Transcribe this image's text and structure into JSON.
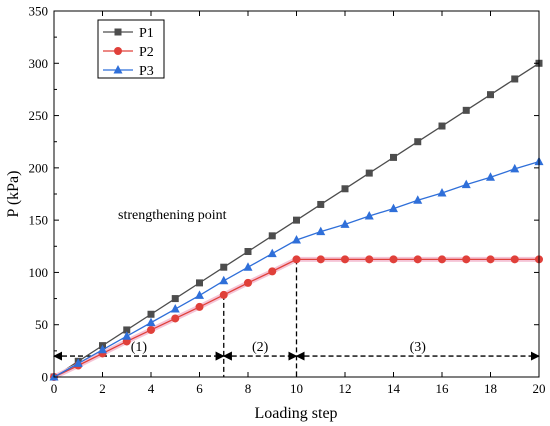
{
  "chart_data": {
    "type": "line",
    "title": "",
    "xlabel": "Loading step",
    "ylabel": "P (kPa)",
    "xlim": [
      0,
      20
    ],
    "ylim": [
      0,
      350
    ],
    "xticks": [
      0,
      2,
      4,
      6,
      8,
      10,
      12,
      14,
      16,
      18,
      20
    ],
    "yticks": [
      0,
      50,
      100,
      150,
      200,
      250,
      300,
      350
    ],
    "grid": false,
    "legend_position": "top-left",
    "x": [
      0,
      1,
      2,
      3,
      4,
      5,
      6,
      7,
      8,
      9,
      10,
      11,
      12,
      13,
      14,
      15,
      16,
      17,
      18,
      19,
      20
    ],
    "series": [
      {
        "name": "P1",
        "color": "#4d4d4d",
        "marker": "square",
        "values": [
          0,
          15,
          30,
          45,
          60,
          75,
          90,
          105,
          120,
          135,
          150,
          165,
          180,
          195,
          210,
          225,
          240,
          255,
          270,
          285,
          300
        ]
      },
      {
        "name": "P2",
        "color": "#e0403a",
        "marker": "circle",
        "values": [
          0,
          11,
          22.5,
          34,
          45,
          56,
          67,
          78.5,
          90,
          101,
          112.5,
          112.5,
          112.5,
          112.5,
          112.5,
          112.5,
          112.5,
          112.5,
          112.5,
          112.5,
          112.5
        ]
      },
      {
        "name": "P3",
        "color": "#2f6fd9",
        "marker": "triangle",
        "values": [
          0,
          13,
          26,
          39,
          52,
          65,
          78,
          92,
          105,
          118,
          131,
          139,
          146,
          154,
          161,
          169,
          176,
          184,
          191,
          199,
          206
        ]
      }
    ],
    "annotations": {
      "label": "strengthening point",
      "markers": [
        7,
        10
      ],
      "phases": [
        "(1)",
        "(2)",
        "(3)"
      ],
      "phase_ranges": [
        [
          0,
          7
        ],
        [
          7,
          10
        ],
        [
          10,
          20
        ]
      ],
      "arrow_level": 20
    }
  }
}
